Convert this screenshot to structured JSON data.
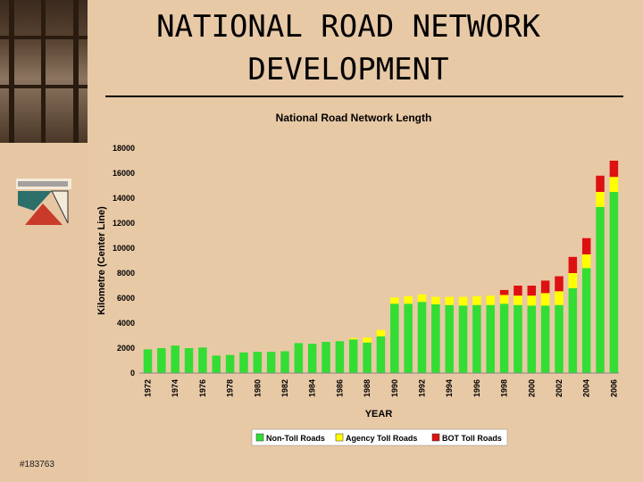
{
  "slide": {
    "title_line1": "NATIONAL ROAD NETWORK",
    "title_line2": "DEVELOPMENT",
    "slide_number": "#183763"
  },
  "colors": {
    "non_toll": "#33dd33",
    "agency_toll": "#ffff00",
    "bot_toll": "#dd1111",
    "background": "#e8c9a6"
  },
  "chart_data": {
    "type": "bar",
    "stacked": true,
    "title": "National Road Network Length",
    "xlabel": "YEAR",
    "ylabel": "Kilometre (Center Line)",
    "ylim": [
      0,
      18000
    ],
    "yticks": [
      0,
      2000,
      4000,
      6000,
      8000,
      10000,
      12000,
      14000,
      16000,
      18000
    ],
    "xtick_labels": [
      "1972",
      "1974",
      "1976",
      "1978",
      "1980",
      "1982",
      "1984",
      "1986",
      "1988",
      "1990",
      "1992",
      "1994",
      "1996",
      "1998",
      "2000",
      "2002",
      "2004",
      "2006"
    ],
    "legend_position": "bottom",
    "categories": [
      1972,
      1973,
      1974,
      1975,
      1976,
      1977,
      1978,
      1979,
      1980,
      1981,
      1982,
      1983,
      1984,
      1985,
      1986,
      1987,
      1988,
      1989,
      1990,
      1991,
      1992,
      1993,
      1994,
      1995,
      1996,
      1997,
      1998,
      1999,
      2000,
      2001,
      2002,
      2003,
      2004,
      2005,
      2006
    ],
    "series": [
      {
        "name": "Non-Toll Roads",
        "color": "#33dd33",
        "values": [
          1900,
          2000,
          2200,
          2000,
          2050,
          1400,
          1450,
          1650,
          1700,
          1700,
          1750,
          2400,
          2350,
          2500,
          2550,
          2700,
          2450,
          2950,
          5550,
          5550,
          5700,
          5500,
          5450,
          5400,
          5450,
          5450,
          5550,
          5450,
          5400,
          5400,
          5450,
          6800,
          8400,
          13300,
          14500
        ]
      },
      {
        "name": "Agency Toll Roads",
        "color": "#ffff00",
        "values": [
          0,
          0,
          0,
          0,
          0,
          0,
          0,
          0,
          0,
          0,
          0,
          0,
          0,
          0,
          0,
          100,
          400,
          500,
          500,
          600,
          600,
          600,
          650,
          700,
          700,
          750,
          700,
          750,
          800,
          1000,
          1100,
          1200,
          1100,
          1200,
          1200
        ]
      },
      {
        "name": "BOT Toll Roads",
        "color": "#dd1111",
        "values": [
          0,
          0,
          0,
          0,
          0,
          0,
          0,
          0,
          0,
          0,
          0,
          0,
          0,
          0,
          0,
          0,
          0,
          0,
          0,
          0,
          0,
          0,
          0,
          0,
          0,
          0,
          400,
          800,
          800,
          1000,
          1200,
          1300,
          1300,
          1300,
          1300
        ]
      }
    ]
  }
}
